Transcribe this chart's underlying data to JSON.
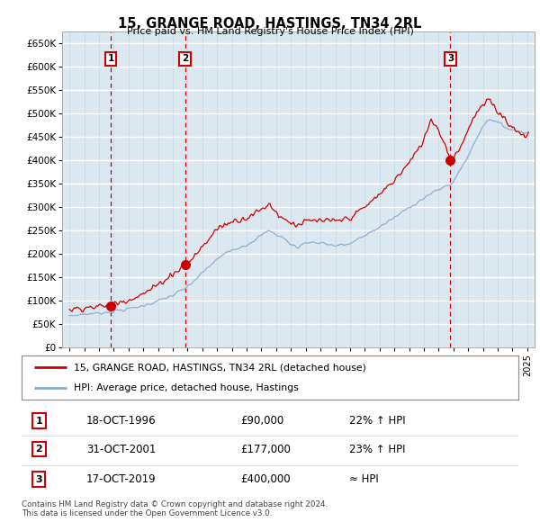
{
  "title": "15, GRANGE ROAD, HASTINGS, TN34 2RL",
  "subtitle": "Price paid vs. HM Land Registry's House Price Index (HPI)",
  "legend_line1": "15, GRANGE ROAD, HASTINGS, TN34 2RL (detached house)",
  "legend_line2": "HPI: Average price, detached house, Hastings",
  "footer1": "Contains HM Land Registry data © Crown copyright and database right 2024.",
  "footer2": "This data is licensed under the Open Government Licence v3.0.",
  "sale_color": "#cc0000",
  "hpi_color": "#88aacc",
  "vline_color": "#cc0000",
  "grid_color_v": "#c8d8e8",
  "grid_color_h": "#ffffff",
  "background_color": "#dce8f0",
  "sales": [
    {
      "date": 1996.8,
      "price": 90000,
      "label": "1"
    },
    {
      "date": 2001.83,
      "price": 177000,
      "label": "2"
    },
    {
      "date": 2019.8,
      "price": 400000,
      "label": "3"
    }
  ],
  "sale_annotations": [
    {
      "label": "1",
      "date": "18-OCT-1996",
      "price": "£90,000",
      "hpi": "22% ↑ HPI"
    },
    {
      "label": "2",
      "date": "31-OCT-2001",
      "price": "£177,000",
      "hpi": "23% ↑ HPI"
    },
    {
      "label": "3",
      "date": "17-OCT-2019",
      "price": "£400,000",
      "hpi": "≈ HPI"
    }
  ],
  "ylim": [
    0,
    675000
  ],
  "yticks": [
    0,
    50000,
    100000,
    150000,
    200000,
    250000,
    300000,
    350000,
    400000,
    450000,
    500000,
    550000,
    600000,
    650000
  ],
  "xlim_start": 1993.5,
  "xlim_end": 2025.5
}
